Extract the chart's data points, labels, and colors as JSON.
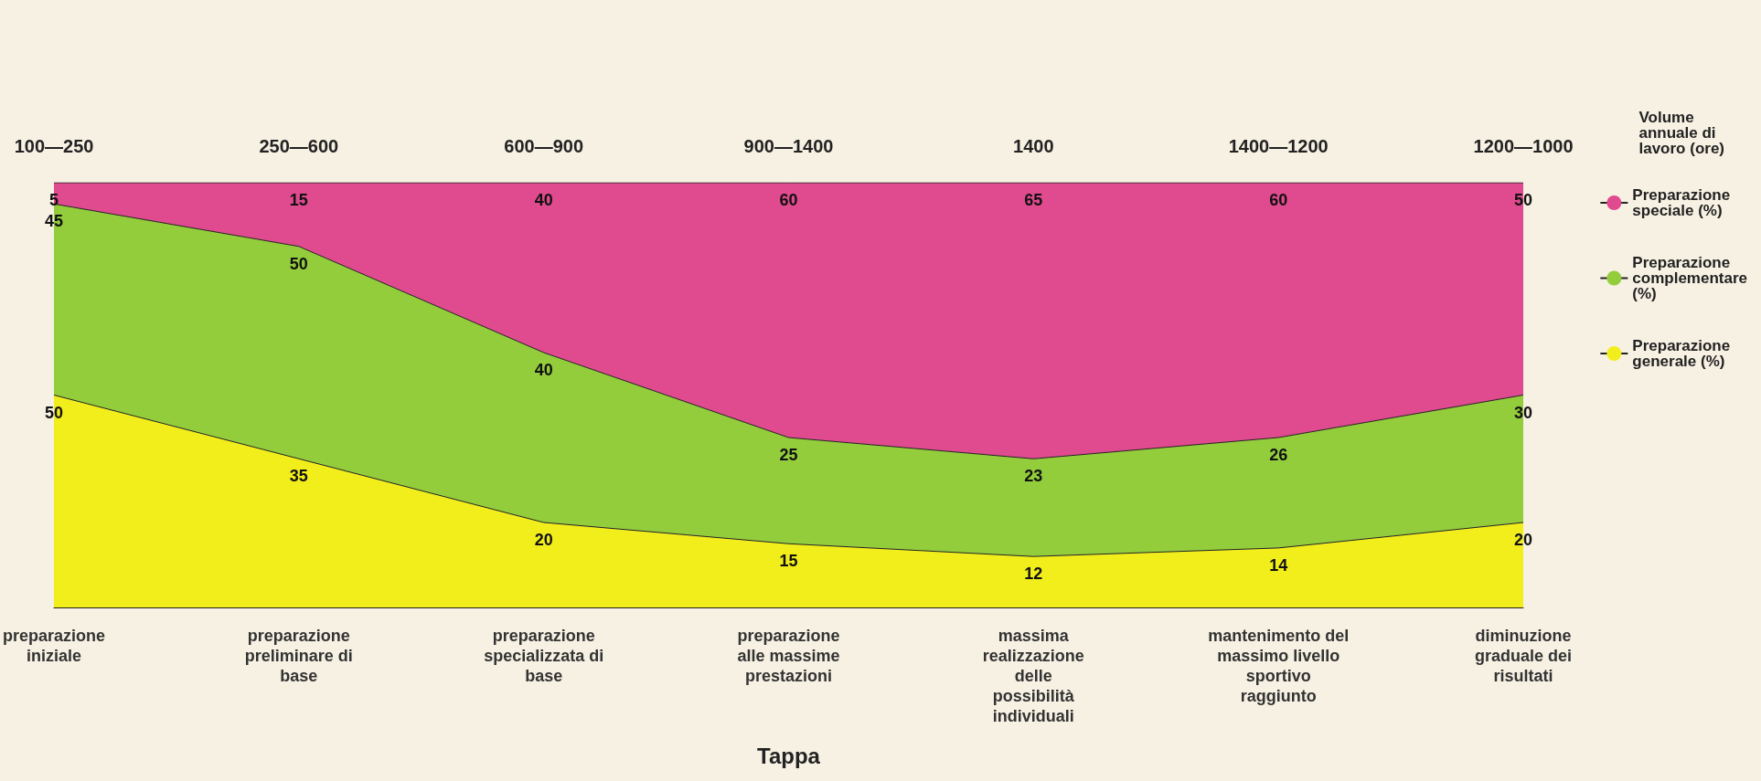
{
  "chart_data": {
    "type": "area",
    "stacked": true,
    "data_labels": true,
    "xlabel": "Tappa",
    "legend": "right",
    "categories": [
      "preparazione iniziale",
      "preparazione preliminare di base",
      "preparazione specializzata di base",
      "preparazione alle massime prestazioni",
      "massima realizzazione delle possibilità individuali",
      "mantenimento del massimo livello sportivo raggiunto",
      "diminuzione graduale dei risultati"
    ],
    "series": [
      {
        "name": "Preparazione generale (%)",
        "color": "#f2ee1c",
        "values": [
          50,
          35,
          20,
          15,
          12,
          14,
          20
        ]
      },
      {
        "name": "Preparazione complementare (%)",
        "color": "#93cd3c",
        "values": [
          45,
          50,
          40,
          25,
          23,
          26,
          30
        ]
      },
      {
        "name": "Preparazione speciale (%)",
        "color": "#e04a8e",
        "values": [
          5,
          15,
          40,
          60,
          65,
          60,
          50
        ]
      }
    ],
    "annotations": [
      "100—250",
      "250—600",
      "600—900",
      "900—1400",
      "1400",
      "1400—1200",
      "1200—1000",
      "Volume annuale di lavoro (ore)"
    ]
  }
}
